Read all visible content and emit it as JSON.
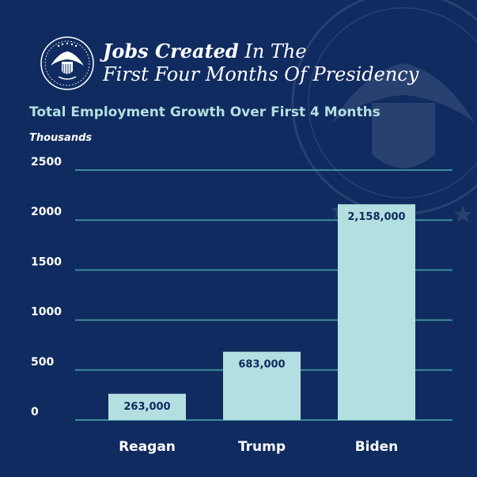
{
  "header": {
    "title_bold": "Jobs Created",
    "title_rest": " In The",
    "title_line2": "First Four Months Of Presidency"
  },
  "chart_data": {
    "type": "bar",
    "title": "Total Employment Growth Over First 4 Months",
    "ylabel": "Thousands",
    "categories": [
      "Reagan",
      "Trump",
      "Biden"
    ],
    "values": [
      263,
      683,
      2158
    ],
    "data_labels": [
      "263,000",
      "683,000",
      "2,158,000"
    ],
    "yticks": [
      0,
      500,
      1000,
      1500,
      2000,
      2500
    ],
    "ylim": [
      0,
      2500
    ],
    "grid": true,
    "legend": "none"
  },
  "colors": {
    "background": "#0f2b60",
    "bar": "#b4dfe0",
    "gridline": "#3d8d97",
    "label_text": "#0f2b60",
    "axis_text": "#ffffff"
  }
}
